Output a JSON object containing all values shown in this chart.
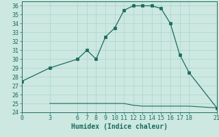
{
  "upper_x": [
    0,
    3,
    6,
    7,
    8,
    9,
    10,
    11,
    12,
    13,
    14,
    15,
    16,
    17,
    18,
    21
  ],
  "upper_y": [
    27.5,
    29.0,
    30.0,
    31.0,
    30.0,
    32.5,
    33.5,
    35.5,
    36.0,
    36.0,
    36.0,
    35.7,
    34.0,
    30.5,
    28.5,
    24.5
  ],
  "lower_x": [
    3,
    6,
    7,
    8,
    9,
    10,
    11,
    12,
    13,
    14,
    15,
    16,
    17,
    18,
    21
  ],
  "lower_y": [
    25.0,
    25.0,
    25.0,
    25.0,
    25.0,
    25.0,
    25.0,
    24.8,
    24.7,
    24.7,
    24.7,
    24.7,
    24.7,
    24.7,
    24.5
  ],
  "line_color": "#1a6b5e",
  "bg_color": "#cce8e0",
  "grid_color": "#a8d4cc",
  "xlabel": "Humidex (Indice chaleur)",
  "xlim": [
    0,
    21
  ],
  "ylim": [
    24,
    36.5
  ],
  "xticks": [
    0,
    3,
    6,
    7,
    8,
    9,
    10,
    11,
    12,
    13,
    14,
    15,
    16,
    17,
    18,
    21
  ],
  "yticks": [
    24,
    25,
    26,
    27,
    28,
    29,
    30,
    31,
    32,
    33,
    34,
    35,
    36
  ],
  "title_color": "#1a6b5e",
  "tick_fontsize": 6.0,
  "xlabel_fontsize": 7.0
}
